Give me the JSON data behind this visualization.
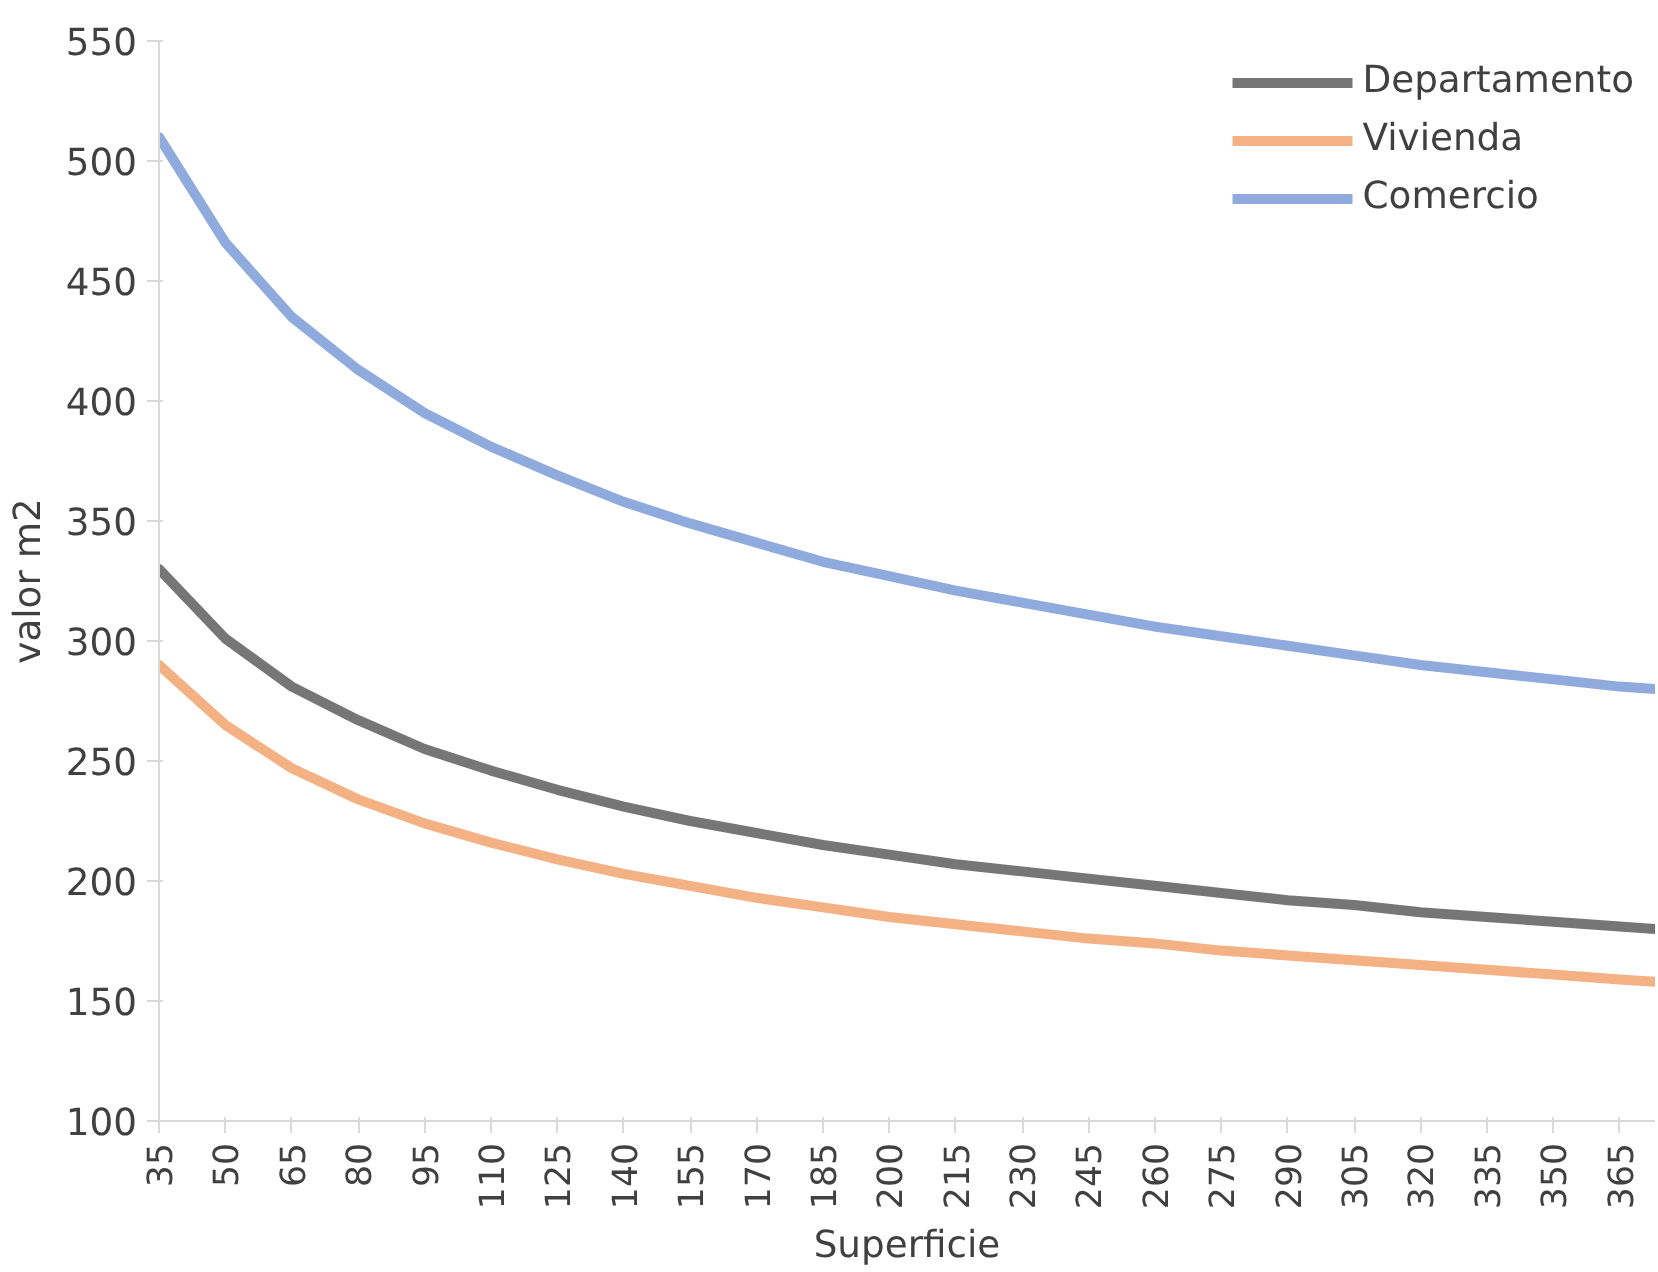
{
  "chart_data": {
    "type": "line",
    "xlabel": "Superficie",
    "ylabel": "valor m2",
    "x": [
      35,
      50,
      65,
      80,
      95,
      110,
      125,
      140,
      155,
      170,
      185,
      200,
      215,
      230,
      245,
      260,
      275,
      290,
      305,
      320,
      335,
      350,
      365,
      373
    ],
    "series": [
      {
        "name": "Departamento",
        "color": "#767676",
        "values": [
          330,
          301,
          281,
          267,
          255,
          246,
          238,
          231,
          225,
          220,
          215,
          211,
          207,
          204,
          201,
          198,
          195,
          192,
          190,
          187,
          185,
          183,
          181,
          180
        ]
      },
      {
        "name": "Vivienda",
        "color": "#f4b183",
        "values": [
          290,
          265,
          247,
          234,
          224,
          216,
          209,
          203,
          198,
          193,
          189,
          185,
          182,
          179,
          176,
          174,
          171,
          169,
          167,
          165,
          163,
          161,
          159,
          158
        ]
      },
      {
        "name": "Comercio",
        "color": "#8faadc",
        "values": [
          510,
          466,
          435,
          413,
          395,
          381,
          369,
          358,
          349,
          341,
          333,
          327,
          321,
          316,
          311,
          306,
          302,
          298,
          294,
          290,
          287,
          284,
          281,
          280
        ]
      }
    ],
    "xlim": [
      35,
      373
    ],
    "xticks": [
      35,
      50,
      65,
      80,
      95,
      110,
      125,
      140,
      155,
      170,
      185,
      200,
      215,
      230,
      245,
      260,
      275,
      290,
      305,
      320,
      335,
      350,
      365
    ],
    "ylim": [
      100,
      550
    ],
    "yticks": [
      100,
      150,
      200,
      250,
      300,
      350,
      400,
      450,
      500,
      550
    ],
    "grid": false,
    "legend": "top right",
    "line_style": "solid"
  }
}
